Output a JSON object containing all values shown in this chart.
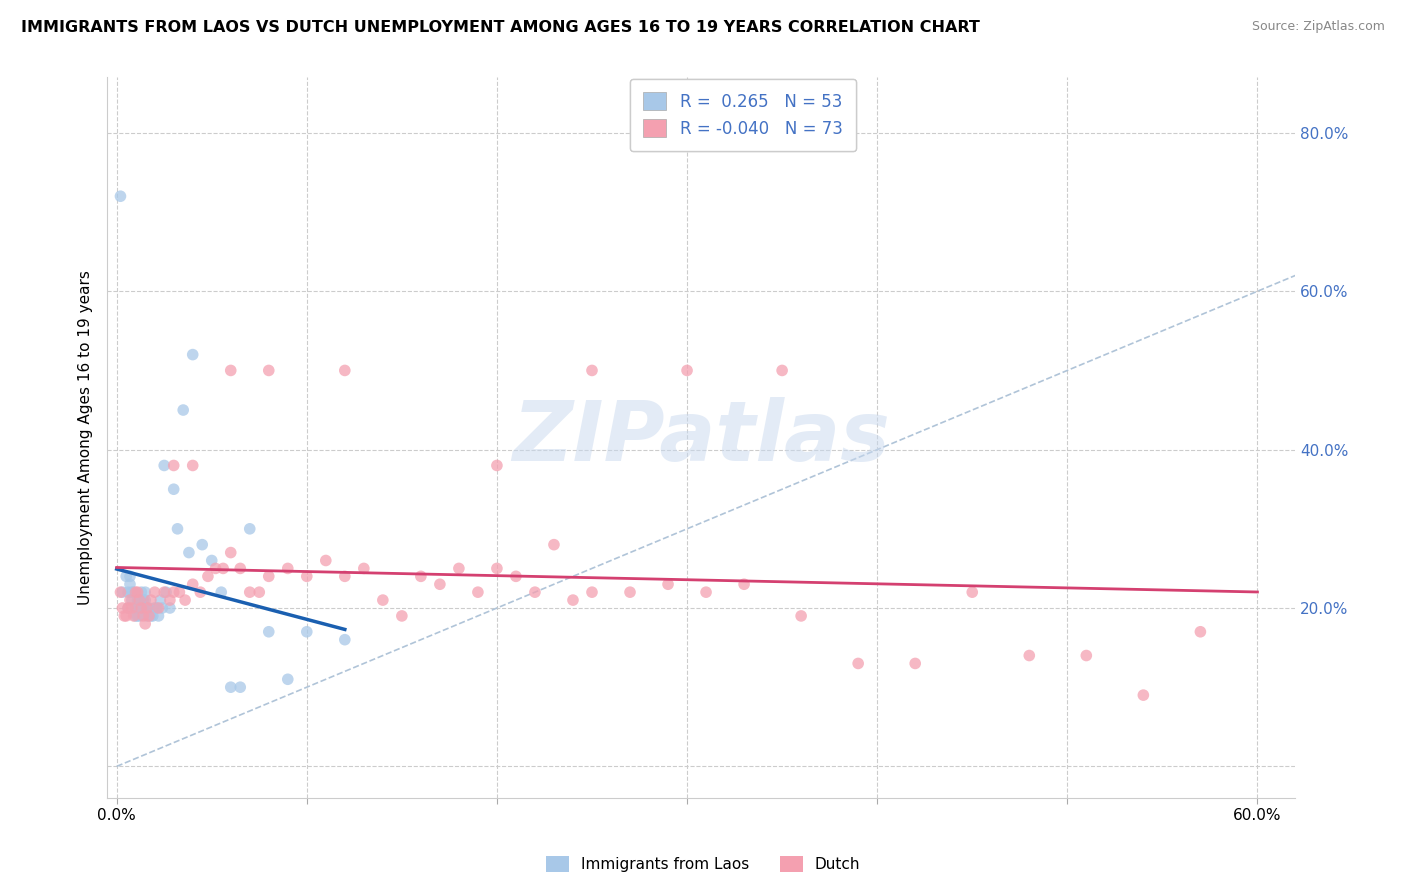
{
  "title": "IMMIGRANTS FROM LAOS VS DUTCH UNEMPLOYMENT AMONG AGES 16 TO 19 YEARS CORRELATION CHART",
  "source": "Source: ZipAtlas.com",
  "ylabel": "Unemployment Among Ages 16 to 19 years",
  "xlim": [
    -0.005,
    0.62
  ],
  "ylim": [
    -0.04,
    0.87
  ],
  "ytick_positions": [
    0.0,
    0.2,
    0.4,
    0.6,
    0.8
  ],
  "ytick_labels": [
    "",
    "20.0%",
    "40.0%",
    "60.0%",
    "80.0%"
  ],
  "xtick_positions": [
    0.0,
    0.1,
    0.2,
    0.3,
    0.4,
    0.5,
    0.6
  ],
  "xtick_labels": [
    "0.0%",
    "",
    "",
    "",
    "",
    "",
    "60.0%"
  ],
  "blue_fill_color": "#a8c8e8",
  "pink_fill_color": "#f4a0b0",
  "blue_line_color": "#1a5fb0",
  "pink_line_color": "#d44070",
  "dashed_line_color": "#b0c4d8",
  "right_axis_color": "#4472c4",
  "watermark": "ZIPatlas",
  "legend_label_blue": "Immigrants from Laos",
  "legend_label_pink": "Dutch",
  "blue_x": [
    0.002,
    0.003,
    0.005,
    0.006,
    0.006,
    0.007,
    0.007,
    0.008,
    0.008,
    0.009,
    0.01,
    0.01,
    0.011,
    0.011,
    0.011,
    0.012,
    0.012,
    0.012,
    0.013,
    0.013,
    0.013,
    0.014,
    0.014,
    0.015,
    0.015,
    0.016,
    0.016,
    0.017,
    0.018,
    0.019,
    0.02,
    0.021,
    0.022,
    0.023,
    0.024,
    0.025,
    0.026,
    0.028,
    0.03,
    0.032,
    0.035,
    0.038,
    0.04,
    0.045,
    0.05,
    0.055,
    0.06,
    0.065,
    0.07,
    0.08,
    0.09,
    0.1,
    0.12
  ],
  "blue_y": [
    0.72,
    0.22,
    0.24,
    0.22,
    0.2,
    0.24,
    0.23,
    0.22,
    0.21,
    0.22,
    0.2,
    0.19,
    0.21,
    0.2,
    0.19,
    0.2,
    0.2,
    0.19,
    0.22,
    0.21,
    0.2,
    0.21,
    0.2,
    0.22,
    0.21,
    0.2,
    0.19,
    0.2,
    0.19,
    0.19,
    0.2,
    0.2,
    0.19,
    0.21,
    0.2,
    0.38,
    0.22,
    0.2,
    0.35,
    0.3,
    0.45,
    0.27,
    0.52,
    0.28,
    0.26,
    0.22,
    0.1,
    0.1,
    0.3,
    0.17,
    0.11,
    0.17,
    0.16
  ],
  "pink_x": [
    0.002,
    0.003,
    0.004,
    0.005,
    0.006,
    0.007,
    0.008,
    0.009,
    0.01,
    0.011,
    0.012,
    0.013,
    0.014,
    0.015,
    0.016,
    0.017,
    0.018,
    0.02,
    0.022,
    0.025,
    0.028,
    0.03,
    0.033,
    0.036,
    0.04,
    0.044,
    0.048,
    0.052,
    0.056,
    0.06,
    0.065,
    0.07,
    0.075,
    0.08,
    0.09,
    0.1,
    0.11,
    0.12,
    0.13,
    0.14,
    0.15,
    0.16,
    0.17,
    0.18,
    0.19,
    0.2,
    0.21,
    0.22,
    0.23,
    0.24,
    0.25,
    0.27,
    0.29,
    0.31,
    0.33,
    0.36,
    0.39,
    0.42,
    0.45,
    0.48,
    0.51,
    0.54,
    0.57,
    0.2,
    0.25,
    0.3,
    0.35,
    0.12,
    0.08,
    0.06,
    0.04,
    0.03
  ],
  "pink_y": [
    0.22,
    0.2,
    0.19,
    0.19,
    0.2,
    0.21,
    0.2,
    0.19,
    0.22,
    0.22,
    0.21,
    0.2,
    0.19,
    0.18,
    0.2,
    0.19,
    0.21,
    0.22,
    0.2,
    0.22,
    0.21,
    0.22,
    0.22,
    0.21,
    0.23,
    0.22,
    0.24,
    0.25,
    0.25,
    0.27,
    0.25,
    0.22,
    0.22,
    0.24,
    0.25,
    0.24,
    0.26,
    0.24,
    0.25,
    0.21,
    0.19,
    0.24,
    0.23,
    0.25,
    0.22,
    0.25,
    0.24,
    0.22,
    0.28,
    0.21,
    0.22,
    0.22,
    0.23,
    0.22,
    0.23,
    0.19,
    0.13,
    0.13,
    0.22,
    0.14,
    0.14,
    0.09,
    0.17,
    0.38,
    0.5,
    0.5,
    0.5,
    0.5,
    0.5,
    0.5,
    0.38,
    0.38
  ]
}
